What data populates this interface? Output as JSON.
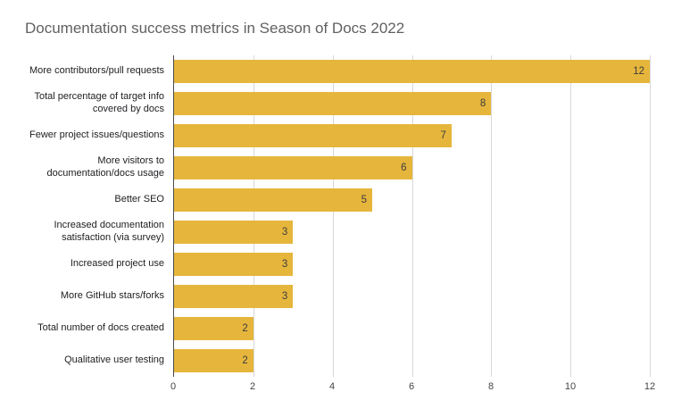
{
  "title": "Documentation success metrics in Season of Docs 2022",
  "chart_data": {
    "type": "bar",
    "orientation": "horizontal",
    "title": "Documentation success metrics in Season of Docs 2022",
    "categories": [
      "More contributors/pull requests",
      "Total percentage of target info covered by docs",
      "Fewer project issues/questions",
      "More visitors to documentation/docs usage",
      "Better SEO",
      "Increased documentation satisfaction (via survey)",
      "Increased project use",
      "More GitHub stars/forks",
      "Total number of docs created",
      "Qualitative user testing"
    ],
    "values": [
      12,
      8,
      7,
      6,
      5,
      3,
      3,
      3,
      2,
      2
    ],
    "xlabel": "",
    "ylabel": "",
    "xlim": [
      0,
      12
    ],
    "ticks": [
      0,
      2,
      4,
      6,
      8,
      10,
      12
    ],
    "grid": true,
    "data_labels": "inside-end",
    "bar_color": "#e6b63c",
    "value_label_color": "#3c3c3c",
    "tick_label_color": "#444444",
    "title_color": "#616161",
    "legend_position": "none"
  }
}
